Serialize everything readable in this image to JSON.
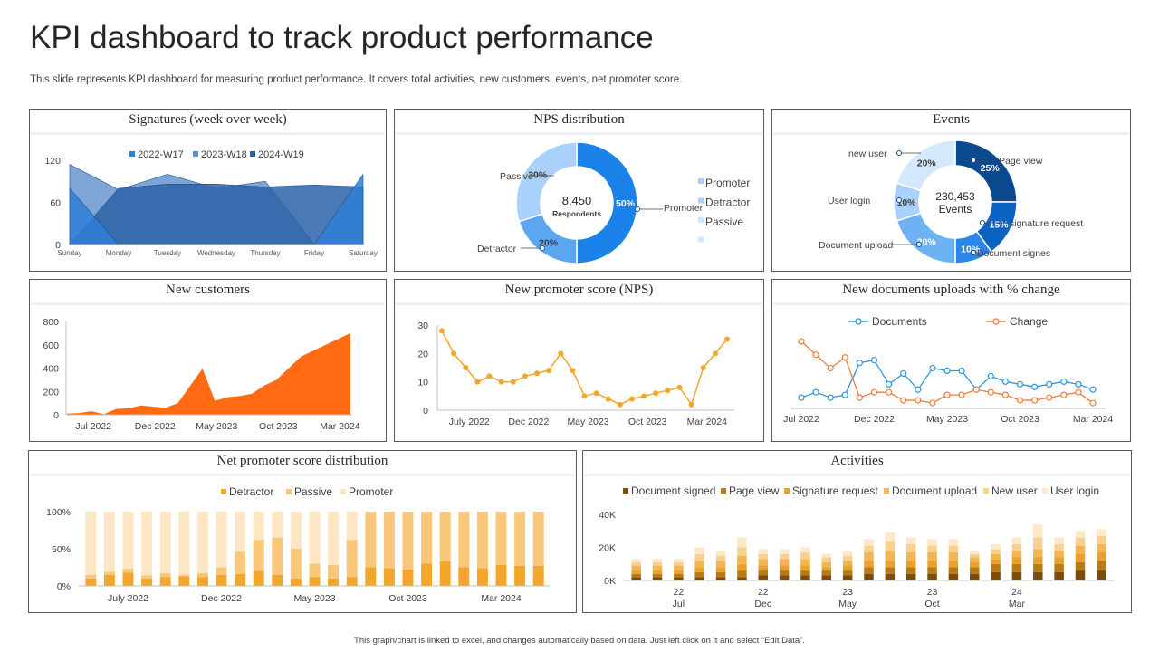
{
  "header": {
    "title": "KPI dashboard to track product performance",
    "subtitle": "This slide represents KPI dashboard for measuring product performance. It covers total activities, new customers, events, net promoter score.",
    "footer": "This graph/chart is linked to excel, and changes automatically based on data. Just left click on it and select “Edit Data”."
  },
  "colors": {
    "blue_dark": "#0b4f9c",
    "blue": "#1a82e8",
    "blue_mid": "#5aa6f0",
    "blue_light": "#a9d1fb",
    "blue_pale": "#cfe6fd",
    "orange": "#ff6a13",
    "gold": "#f2a72a",
    "gold_light": "#f8c77a",
    "gold_pale": "#fde6c4",
    "brown": "#8a5a12"
  },
  "chart_data": [
    {
      "id": "signatures",
      "type": "area",
      "title": "Signatures (week over week)",
      "categories": [
        "Sunday",
        "Monday",
        "Tuesday",
        "Wednesday",
        "Thursday",
        "Friday",
        "Saturday"
      ],
      "ylim": [
        0,
        120
      ],
      "yticks": [
        "0",
        "60",
        "120"
      ],
      "series": [
        {
          "name": "2022-W17",
          "values": [
            80,
            0,
            0,
            0,
            0,
            0,
            100
          ]
        },
        {
          "name": "2023-W18",
          "values": [
            114,
            78,
            100,
            80,
            90,
            0,
            0
          ]
        },
        {
          "name": "2024-W19",
          "values": [
            0,
            80,
            86,
            86,
            82,
            85,
            82
          ]
        }
      ]
    },
    {
      "id": "nps_distribution",
      "type": "pie",
      "title": "NPS distribution",
      "center_value": "8,450",
      "center_label": "Respondents",
      "slices": [
        {
          "name": "Promoter",
          "value": 50,
          "label": "50%"
        },
        {
          "name": "Detractor",
          "value": 20,
          "label": "20%"
        },
        {
          "name": "Passive",
          "value": 30,
          "label": "30%"
        }
      ],
      "legend": [
        "Promoter",
        "Detractor",
        "Passive",
        ""
      ]
    },
    {
      "id": "events",
      "type": "pie",
      "title": "Events",
      "center_value": "230,453",
      "center_label": "Events",
      "slices": [
        {
          "name": "Page view",
          "value": 25,
          "label": "25%"
        },
        {
          "name": "signature request",
          "value": 15,
          "label": "15%"
        },
        {
          "name": "Document signes",
          "value": 10,
          "label": "10%"
        },
        {
          "name": "Document upload",
          "value": 20,
          "label": "20%"
        },
        {
          "name": "User login",
          "value": 10,
          "label": "10%"
        },
        {
          "name": "new user",
          "value": 20,
          "label": "20%"
        }
      ]
    },
    {
      "id": "new_customers",
      "type": "area",
      "title": "New customers",
      "ylim": [
        0,
        800
      ],
      "yticks": [
        "0",
        "200",
        "400",
        "600",
        "800"
      ],
      "xticks": [
        {
          "i": 2,
          "label": "Jul  2022"
        },
        {
          "i": 7,
          "label": "Dec 2022"
        },
        {
          "i": 12,
          "label": "May 2023"
        },
        {
          "i": 17,
          "label": "Oct 2023"
        },
        {
          "i": 22,
          "label": "Mar 2024"
        }
      ],
      "values": [
        10,
        15,
        30,
        5,
        50,
        55,
        80,
        70,
        60,
        100,
        250,
        395,
        120,
        150,
        160,
        180,
        250,
        300,
        400,
        500,
        550,
        600,
        650,
        700
      ]
    },
    {
      "id": "nps_score",
      "type": "line",
      "title": "New promoter score (NPS)",
      "ylim": [
        0,
        30
      ],
      "yticks": [
        "0",
        "10",
        "20",
        "30"
      ],
      "xticks": [
        {
          "i": 2,
          "label": "July 2022"
        },
        {
          "i": 7,
          "label": "Dec  2022"
        },
        {
          "i": 12,
          "label": "May 2023"
        },
        {
          "i": 17,
          "label": "Oct 2023"
        },
        {
          "i": 22,
          "label": "Mar 2024"
        }
      ],
      "values": [
        28,
        20,
        15,
        10,
        12,
        10,
        10,
        12,
        13,
        14,
        20,
        14,
        5,
        6,
        4,
        2,
        4,
        5,
        6,
        7,
        8,
        2,
        15,
        20,
        25
      ]
    },
    {
      "id": "documents",
      "type": "line",
      "title": "New documents uploads with % change",
      "xticks": [
        {
          "i": 0,
          "label": "Jul 2022"
        },
        {
          "i": 5,
          "label": "Dec 2022"
        },
        {
          "i": 10,
          "label": "May 2023"
        },
        {
          "i": 15,
          "label": "Oct 2023"
        },
        {
          "i": 20,
          "label": "Mar 2024"
        }
      ],
      "series": [
        {
          "name": "Documents",
          "values": [
            3,
            5,
            3,
            4,
            16,
            17,
            8,
            12,
            6,
            14,
            13,
            13,
            6,
            11,
            9,
            8,
            7,
            8,
            9,
            8,
            6
          ]
        },
        {
          "name": "Change",
          "values": [
            24,
            19,
            14,
            18,
            3,
            5,
            5,
            2,
            2,
            1,
            4,
            4,
            6,
            5,
            4,
            2,
            2,
            3,
            4,
            5,
            1
          ]
        }
      ]
    },
    {
      "id": "nps_score_distribution",
      "type": "bar",
      "stacked": true,
      "title": "Net promoter score distribution",
      "ylim": [
        0,
        100
      ],
      "yticks": [
        "0%",
        "50%",
        "100%"
      ],
      "xticks": [
        {
          "i": 2,
          "label": "July 2022"
        },
        {
          "i": 7,
          "label": "Dec 2022"
        },
        {
          "i": 12,
          "label": "May 2023"
        },
        {
          "i": 17,
          "label": "Oct 2023"
        },
        {
          "i": 22,
          "label": "Mar 2024"
        }
      ],
      "series": [
        {
          "name": "Detractor",
          "values": [
            10,
            15,
            18,
            10,
            12,
            13,
            12,
            15,
            16,
            20,
            15,
            10,
            12,
            10,
            12,
            25,
            24,
            22,
            30,
            33,
            25,
            24,
            28,
            27,
            27
          ]
        },
        {
          "name": "Passive",
          "values": [
            5,
            4,
            5,
            4,
            5,
            2,
            5,
            10,
            30,
            42,
            50,
            40,
            18,
            18,
            50,
            75,
            76,
            78,
            70,
            67,
            75,
            76,
            72,
            73,
            73
          ]
        },
        {
          "name": "Promoter",
          "values": [
            85,
            81,
            77,
            86,
            83,
            85,
            83,
            75,
            54,
            38,
            35,
            50,
            70,
            72,
            38,
            0,
            0,
            0,
            0,
            0,
            0,
            0,
            0,
            0,
            0
          ]
        }
      ]
    },
    {
      "id": "activities",
      "type": "bar",
      "stacked": true,
      "title": "Activities",
      "ylim": [
        0,
        40
      ],
      "yticks": [
        "0K",
        "20K",
        "40K"
      ],
      "xticks_year": [
        {
          "i": 2,
          "label": "22"
        },
        {
          "i": 6,
          "label": "22"
        },
        {
          "i": 10,
          "label": "23"
        },
        {
          "i": 14,
          "label": "23"
        },
        {
          "i": 18,
          "label": "24"
        }
      ],
      "xticks_month": [
        {
          "i": 2,
          "label": "Jul"
        },
        {
          "i": 6,
          "label": "Dec"
        },
        {
          "i": 10,
          "label": "May"
        },
        {
          "i": 14,
          "label": "Oct"
        },
        {
          "i": 18,
          "label": "Mar"
        }
      ],
      "series": [
        {
          "name": "Document signed",
          "values": [
            2,
            2,
            2,
            2,
            2,
            2,
            3,
            3,
            3,
            3,
            3,
            4,
            4,
            4,
            4,
            4,
            4,
            5,
            5,
            5,
            5,
            6,
            6
          ]
        },
        {
          "name": "Page view",
          "values": [
            2,
            2,
            2,
            3,
            3,
            4,
            3,
            3,
            3,
            3,
            3,
            4,
            4,
            4,
            4,
            4,
            4,
            5,
            5,
            5,
            5,
            5,
            6
          ]
        },
        {
          "name": "Signature request",
          "values": [
            2,
            2,
            2,
            3,
            3,
            4,
            3,
            3,
            3,
            2,
            3,
            4,
            4,
            4,
            4,
            4,
            3,
            3,
            4,
            4,
            4,
            5,
            5
          ]
        },
        {
          "name": "Document upload",
          "values": [
            3,
            3,
            3,
            4,
            4,
            5,
            4,
            4,
            4,
            3,
            3,
            5,
            6,
            5,
            5,
            5,
            3,
            3,
            4,
            5,
            4,
            5,
            5
          ]
        },
        {
          "name": "New user",
          "values": [
            2,
            2,
            2,
            4,
            3,
            5,
            3,
            3,
            4,
            3,
            3,
            4,
            6,
            5,
            4,
            4,
            2,
            3,
            4,
            7,
            4,
            5,
            5
          ]
        },
        {
          "name": "User login",
          "values": [
            2,
            2,
            2,
            4,
            3,
            6,
            3,
            3,
            3,
            2,
            3,
            4,
            5,
            4,
            4,
            4,
            2,
            3,
            4,
            8,
            4,
            4,
            4
          ]
        }
      ]
    }
  ]
}
